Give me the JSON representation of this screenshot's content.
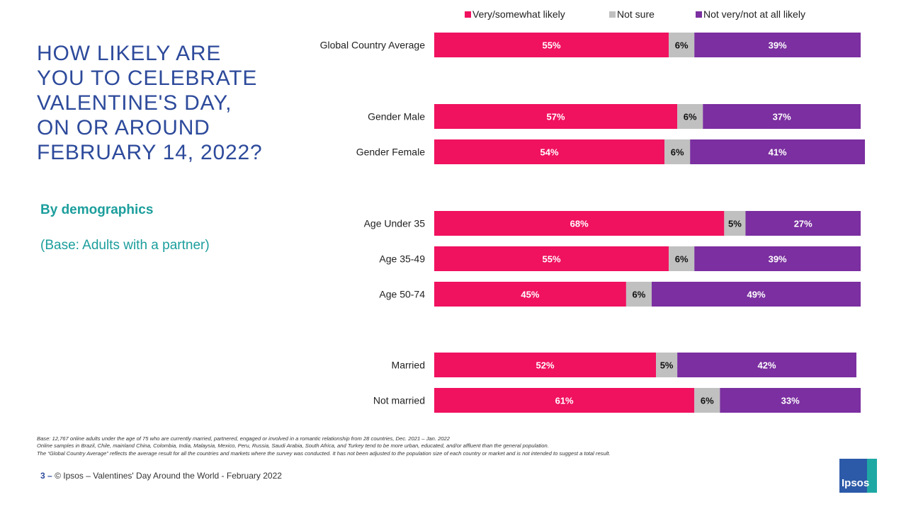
{
  "slide": {
    "title": "HOW LIKELY ARE\nYOU TO CELEBRATE\nVALENTINE'S DAY,\nON OR AROUND\nFEBRUARY 14, 2022?",
    "subtitle": "By demographics",
    "base_note": "(Base: Adults with a partner)"
  },
  "colors": {
    "likely": "#f0115f",
    "not_sure": "#c0c0c0",
    "not_likely": "#7b2fa0",
    "title": "#2d4a9b",
    "teal": "#1b9e9c"
  },
  "chart_data": {
    "type": "bar",
    "orientation": "horizontal-stacked-100",
    "legend_position": "top",
    "categories": [
      "Global Country Average",
      "Gender Male",
      "Gender Female",
      "Age Under 35",
      "Age 35-49",
      "Age 50-74",
      "Married",
      "Not married"
    ],
    "series": [
      {
        "name": "Very/somewhat likely",
        "values": [
          55,
          57,
          54,
          68,
          55,
          45,
          52,
          61
        ]
      },
      {
        "name": "Not sure",
        "values": [
          6,
          6,
          6,
          5,
          6,
          6,
          5,
          6
        ]
      },
      {
        "name": "Not very/not at all likely",
        "values": [
          39,
          37,
          41,
          27,
          39,
          49,
          42,
          33
        ]
      }
    ],
    "value_suffix": "%"
  },
  "footnotes": [
    "Base: 12,767 online adults under the age of 75 who are currently married, partnered, engaged or involved in a romantic relationship from 28 countries, Dec. 2021 – Jan. 2022",
    "Online samples in Brazil, Chile, mainland China, Colombia, India, Malaysia, Mexico, Peru, Russia, Saudi Arabia, South Africa, and Turkey tend to be more urban, educated, and/or affluent than the general population.",
    "The “Global Country Average” reflects the average result for all the countries and markets where the survey was conducted. It has not been adjusted to the population size of each country or market and is not intended to suggest a total result."
  ],
  "footer": {
    "page_number": "3",
    "separator": "–",
    "text": "© Ipsos – Valentines' Day Around the World - February 2022"
  },
  "logo": {
    "text": "Ipsos"
  }
}
